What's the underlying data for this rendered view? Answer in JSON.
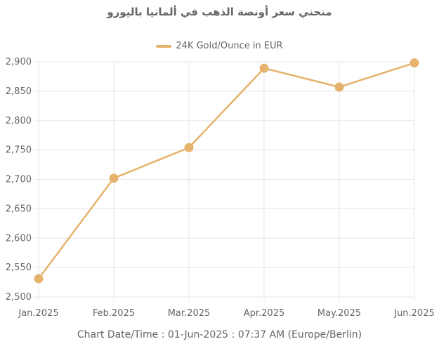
{
  "chart_data": {
    "type": "line",
    "title": "منحني سعر أونصة الذهب في ألمانيا باليورو",
    "categories": [
      "Jan.2025",
      "Feb.2025",
      "Mar.2025",
      "Apr.2025",
      "May.2025",
      "Jun.2025"
    ],
    "series": [
      {
        "name": "24K Gold/Ounce in EUR",
        "values": [
          2531,
          2702,
          2754,
          2889,
          2857,
          2898
        ],
        "color": "#e6b36d"
      }
    ],
    "ylim": [
      2500,
      2900
    ],
    "yticks": [
      2500,
      2550,
      2600,
      2650,
      2700,
      2750,
      2800,
      2850,
      2900
    ],
    "ytick_labels": [
      "2,500",
      "2,550",
      "2,600",
      "2,650",
      "2,700",
      "2,750",
      "2,800",
      "2,850",
      "2,900"
    ],
    "grid": true,
    "legend_position": "top",
    "xlabel": "",
    "ylabel": ""
  },
  "footer": {
    "text": "Chart Date/Time : 01-Jun-2025 : 07:37 AM (Europe/Berlin)"
  },
  "colors": {
    "grid": "#e5e5e5",
    "text": "#666666",
    "series": "#e6b36d"
  }
}
